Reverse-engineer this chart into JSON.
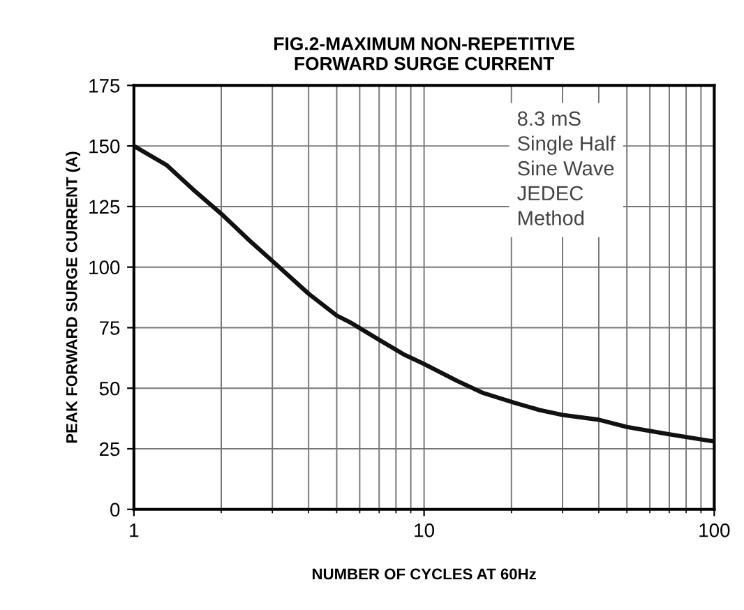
{
  "chart_data": {
    "type": "line",
    "title": "FIG.2-MAXIMUM NON-REPETITIVE\nFORWARD SURGE CURRENT",
    "xlabel": "NUMBER OF CYCLES AT 60Hz",
    "ylabel": "PEAK FORWARD SURGE CURRENT (A)",
    "log": "x",
    "xlim": [
      1,
      100
    ],
    "xticks": [
      1,
      10,
      100
    ],
    "ylim": [
      0,
      175
    ],
    "yticks": [
      0,
      25,
      50,
      75,
      100,
      125,
      150,
      175
    ],
    "grid": true,
    "marker": "none",
    "line_style": "solid",
    "annotations": [
      "8.3 mS\nSingle Half\nSine Wave\nJEDEC\nMethod"
    ],
    "series": [
      {
        "color": "#111111",
        "x": [
          1,
          1.3,
          1.6,
          2,
          2.5,
          3.1,
          4,
          5,
          5.6,
          7,
          8.5,
          10,
          13,
          16,
          20.5,
          25,
          30,
          40,
          50,
          70,
          100
        ],
        "values": [
          150,
          142,
          132,
          122,
          111,
          101,
          89,
          80,
          77,
          70,
          64,
          60,
          53,
          48,
          44,
          41,
          39,
          37,
          34,
          31,
          28
        ]
      }
    ]
  }
}
